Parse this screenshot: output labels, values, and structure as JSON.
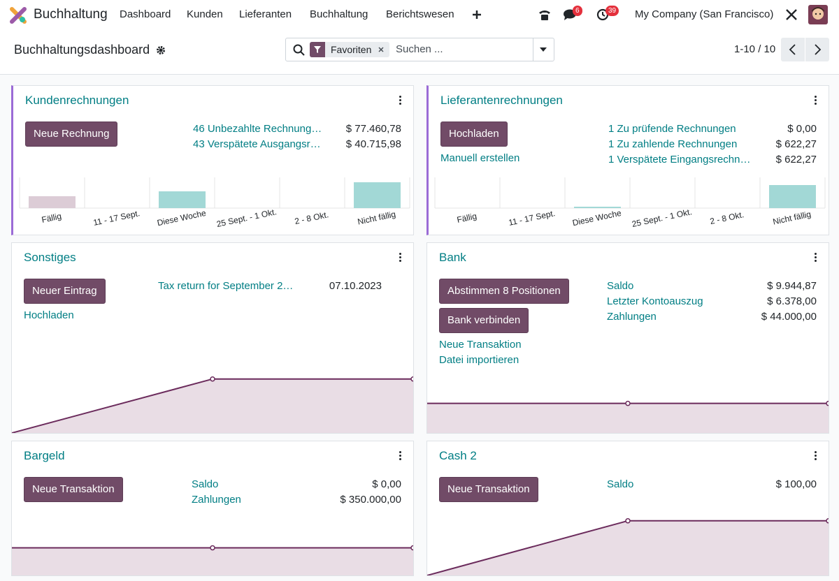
{
  "navbar": {
    "app": "Buchhaltung",
    "menu": [
      "Dashboard",
      "Kunden",
      "Lieferanten",
      "Buchhaltung",
      "Berichtswesen"
    ],
    "messages_badge": 6,
    "activities_badge": 39,
    "company": "My Company (San Francisco)"
  },
  "control_panel": {
    "title": "Buchhaltungsdashboard",
    "facet": "Favoriten",
    "search_placeholder": "Suchen ...",
    "pager": "1-10 / 10"
  },
  "journals": [
    {
      "title": "Kundenrechnungen",
      "favorite": true,
      "buttons": [
        "Neue Rechnung"
      ],
      "stats": [
        {
          "label": "46 Unbezahlte Rechnung…",
          "value": "$ 77.460,78"
        },
        {
          "label": "43 Verspätete Ausgangsr…",
          "value": "$ 40.715,98"
        }
      ],
      "graph": {
        "type": "bar",
        "categories": [
          "Fällig",
          "11 - 17 Sept.",
          "Diese Woche",
          "25 Sept. - 1 Okt.",
          "2 - 8 Okt.",
          "Nicht fällig"
        ],
        "values": [
          17,
          0,
          24,
          0,
          0,
          37
        ],
        "colors": [
          "#dcccd6",
          "#a2d8d6",
          "#a2d8d6",
          "#a2d8d6",
          "#a2d8d6",
          "#a2d8d6"
        ],
        "ylim": [
          0,
          42
        ]
      }
    },
    {
      "title": "Lieferantenrechnungen",
      "favorite": true,
      "buttons": [
        "Hochladen"
      ],
      "links": [
        "Manuell erstellen"
      ],
      "stats": [
        {
          "label": "1 Zu prüfende Rechnungen",
          "value": "$ 0,00"
        },
        {
          "label": "1 Zu zahlende Rechnungen",
          "value": "$ 622,27"
        },
        {
          "label": "1 Verspätete Eingangsrechn…",
          "value": "$ 622,27"
        }
      ],
      "graph": {
        "type": "bar",
        "categories": [
          "Fällig",
          "11 - 17 Sept.",
          "Diese Woche",
          "25 Sept. - 1 Okt.",
          "2 - 8 Okt.",
          "Nicht fällig"
        ],
        "values": [
          0,
          0,
          2,
          0,
          0,
          33
        ],
        "colors": [
          "#dcccd6",
          "#a2d8d6",
          "#a2d8d6",
          "#a2d8d6",
          "#a2d8d6",
          "#a2d8d6"
        ],
        "ylim": [
          0,
          42
        ]
      }
    },
    {
      "title": "Sonstiges",
      "favorite": false,
      "buttons": [
        "Neuer Eintrag"
      ],
      "links": [
        "Hochladen"
      ],
      "stats": [
        {
          "label": "Tax return for September 2…",
          "value": "07.10.2023"
        }
      ],
      "graph": {
        "type": "line",
        "values": [
          0,
          84,
          84
        ],
        "color": "#6b2b5c",
        "fill": "#e9dde5",
        "ylim": [
          0,
          100
        ]
      }
    },
    {
      "title": "Bank",
      "favorite": false,
      "buttons": [
        "Abstimmen 8 Positionen",
        "Bank verbinden"
      ],
      "links": [
        "Neue Transaktion",
        "Datei importieren"
      ],
      "stats": [
        {
          "label": "Saldo",
          "value": "$ 9.944,87"
        },
        {
          "label": "Letzter Kontoauszug",
          "value": "$ 6.378,00"
        },
        {
          "label": "Zahlungen",
          "value": "$ 44.000,00"
        }
      ],
      "graph": {
        "type": "line",
        "values": [
          46,
          46,
          46
        ],
        "color": "#6b2b5c",
        "fill": "#e9dde5",
        "ylim": [
          0,
          100
        ]
      }
    },
    {
      "title": "Bargeld",
      "favorite": false,
      "buttons": [
        "Neue Transaktion"
      ],
      "stats": [
        {
          "label": "Saldo",
          "value": "$ 0,00"
        },
        {
          "label": "Zahlungen",
          "value": "$ 350.000,00"
        }
      ],
      "graph": {
        "type": "line",
        "values": [
          43,
          43,
          43
        ],
        "color": "#6b2b5c",
        "fill": "#e9dde5",
        "ylim": [
          0,
          100
        ]
      }
    },
    {
      "title": "Cash 2",
      "favorite": false,
      "buttons": [
        "Neue Transaktion"
      ],
      "stats": [
        {
          "label": "Saldo",
          "value": "$ 100,00"
        }
      ],
      "graph": {
        "type": "line",
        "values": [
          0,
          85,
          85
        ],
        "color": "#6b2b5c",
        "fill": "#e9dde5",
        "ylim": [
          0,
          100
        ]
      }
    }
  ]
}
